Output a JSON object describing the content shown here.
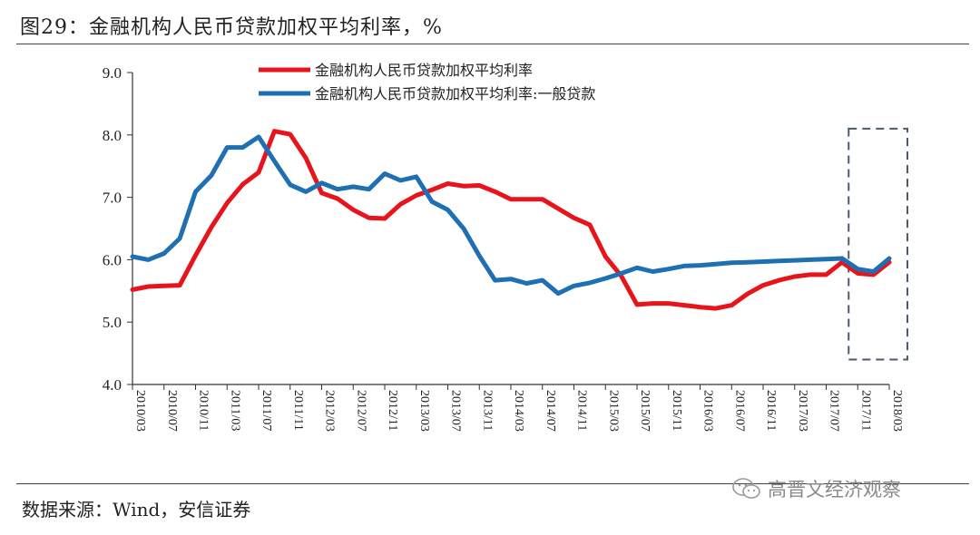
{
  "title": "图29：金融机构人民币贷款加权平均利率，%",
  "source": "数据来源：Wind，安信证券",
  "watermark": "高晋文经济观察",
  "watermark_icon": "wechat-icon",
  "chart_data": {
    "type": "line",
    "title": "图29：金融机构人民币贷款加权平均利率，%",
    "xlabel": "",
    "ylabel": "",
    "ylim": [
      4.0,
      9.0
    ],
    "yticks": [
      "9.0",
      "8.0",
      "7.0",
      "6.0",
      "5.0",
      "4.0"
    ],
    "grid": false,
    "legend_position": "top-center",
    "highlight_box": {
      "from": "2017/11",
      "to": "2018/03",
      "ylim": [
        4.4,
        8.1
      ],
      "style": "dashed",
      "color": "#4a5a6a"
    },
    "x": [
      "2010/03",
      "2010/05",
      "2010/07",
      "2010/09",
      "2010/11",
      "2011/01",
      "2011/03",
      "2011/05",
      "2011/07",
      "2011/09",
      "2011/11",
      "2012/01",
      "2012/03",
      "2012/05",
      "2012/07",
      "2012/09",
      "2012/11",
      "2013/01",
      "2013/03",
      "2013/05",
      "2013/07",
      "2013/09",
      "2013/11",
      "2014/01",
      "2014/03",
      "2014/05",
      "2014/07",
      "2014/09",
      "2014/11",
      "2015/01",
      "2015/03",
      "2015/05",
      "2015/07",
      "2015/09",
      "2015/11",
      "2016/01",
      "2016/03",
      "2016/05",
      "2016/07",
      "2016/09",
      "2016/11",
      "2017/01",
      "2017/03",
      "2017/05",
      "2017/07",
      "2017/09",
      "2017/11",
      "2018/01",
      "2018/03"
    ],
    "xtick_labels": [
      "2010/03",
      "2010/07",
      "2010/11",
      "2011/03",
      "2011/07",
      "2011/11",
      "2012/03",
      "2012/07",
      "2012/11",
      "2013/03",
      "2013/07",
      "2013/11",
      "2014/03",
      "2014/07",
      "2014/11",
      "2015/03",
      "2015/07",
      "2015/11",
      "2016/03",
      "2016/07",
      "2016/11",
      "2017/03",
      "2017/07",
      "2017/11",
      "2018/03"
    ],
    "series": [
      {
        "name": "金融机构人民币贷款加权平均利率",
        "color": "#e8141c",
        "values": [
          5.52,
          5.57,
          5.58,
          5.59,
          6.07,
          6.52,
          6.91,
          7.21,
          7.4,
          8.06,
          8.01,
          7.63,
          7.07,
          6.98,
          6.8,
          6.67,
          6.66,
          6.89,
          7.03,
          7.12,
          7.22,
          7.18,
          7.19,
          7.09,
          6.97,
          6.97,
          6.97,
          6.82,
          6.67,
          6.56,
          6.05,
          5.74,
          5.28,
          5.3,
          5.3,
          5.27,
          5.24,
          5.22,
          5.27,
          5.45,
          5.59,
          5.67,
          5.73,
          5.76,
          5.76,
          5.96,
          5.78,
          5.76,
          5.96
        ]
      },
      {
        "name": "金融机构人民币贷款加权平均利率:一般贷款",
        "color": "#1f6fb3",
        "values": [
          6.05,
          6.0,
          6.1,
          6.34,
          7.09,
          7.35,
          7.8,
          7.8,
          7.97,
          7.58,
          7.2,
          7.09,
          7.23,
          7.13,
          7.17,
          7.13,
          7.38,
          7.27,
          7.33,
          6.93,
          6.8,
          6.5,
          6.06,
          5.67,
          5.69,
          5.62,
          5.67,
          5.46,
          5.58,
          5.63,
          5.7,
          5.78,
          5.87,
          5.81,
          5.85,
          5.9,
          5.91,
          5.93,
          5.95,
          5.96,
          5.97,
          5.98,
          5.99,
          6.0,
          6.01,
          6.02,
          5.85,
          5.81,
          6.02
        ]
      }
    ]
  }
}
